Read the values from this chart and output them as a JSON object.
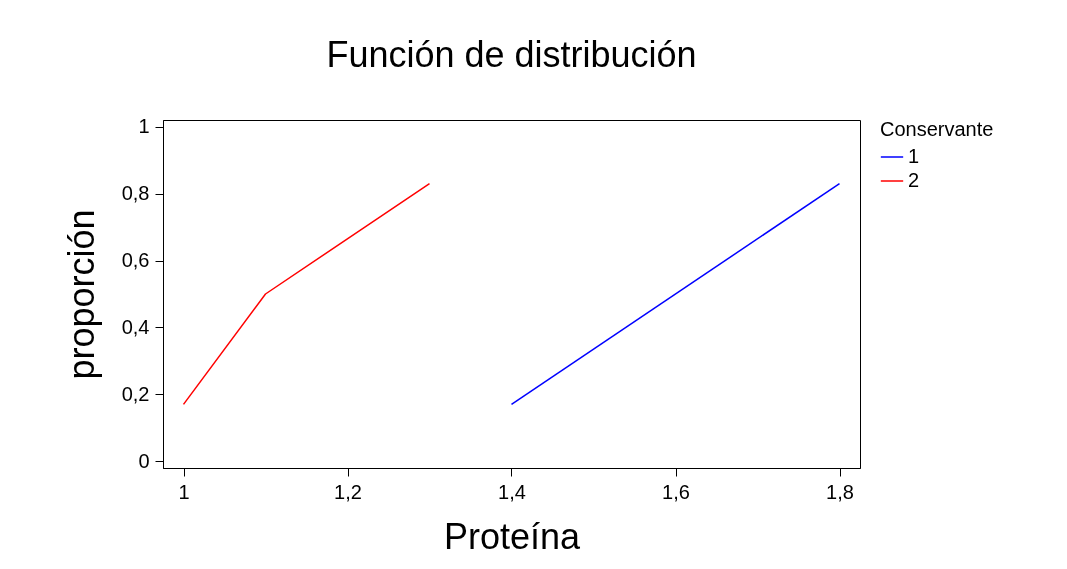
{
  "chart_data": {
    "type": "line",
    "title": "Función de distribución",
    "xlabel": "Proteína",
    "ylabel": "proporción",
    "legend_title": "Conservante",
    "series": [
      {
        "name": "1",
        "color": "#0000ff",
        "x": [
          1.4,
          1.8
        ],
        "values": [
          0.17,
          0.83
        ]
      },
      {
        "name": "2",
        "color": "#ff0000",
        "x": [
          1,
          1.1,
          1.3
        ],
        "values": [
          0.17,
          0.5,
          0.83
        ]
      }
    ],
    "xlim": [
      0.975,
      1.825
    ],
    "xticks": [
      1,
      {
        "value": 1.2,
        "label": "1,2"
      },
      {
        "value": 1.4,
        "label": "1,4"
      },
      {
        "value": 1.6,
        "label": "1,6"
      },
      {
        "value": 1.8,
        "label": "1,8"
      }
    ],
    "ylim": [
      -0.02,
      1.02
    ],
    "yticks": [
      0,
      {
        "value": 0.2,
        "label": "0,2"
      },
      {
        "value": 0.4,
        "label": "0,4"
      },
      {
        "value": 0.6,
        "label": "0,6"
      },
      {
        "value": 0.8,
        "label": "0,8"
      },
      1
    ],
    "grid": false,
    "legend": "right",
    "marker": "none",
    "line_style": "solid"
  }
}
